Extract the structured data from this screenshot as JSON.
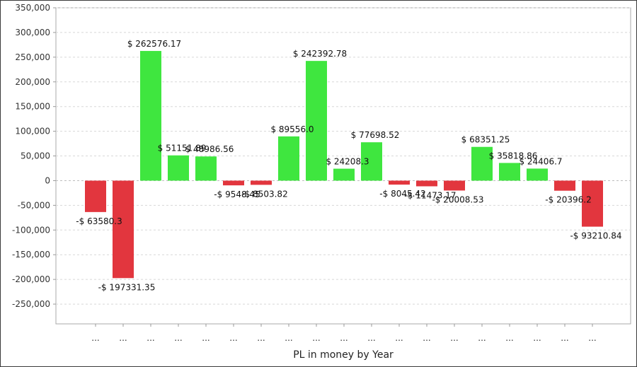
{
  "chart_data": {
    "type": "bar",
    "title": "",
    "xlabel": "PL in money by Year",
    "ylabel": "",
    "ylim": [
      -290000,
      350000
    ],
    "yticks": [
      350000,
      300000,
      250000,
      200000,
      150000,
      100000,
      50000,
      0,
      -50000,
      -100000,
      -150000,
      -200000,
      -250000
    ],
    "ytick_labels": [
      "350,000",
      "300,000",
      "250,000",
      "200,000",
      "150,000",
      "100,000",
      "50,000",
      "0",
      "-50,000",
      "-100,000",
      "-150,000",
      "-200,000",
      "-250,000"
    ],
    "grid": true,
    "categories": [
      "...",
      "...",
      "...",
      "...",
      "...",
      "...",
      "...",
      "...",
      "...",
      "...",
      "...",
      "...",
      "...",
      "...",
      "...",
      "...",
      "...",
      "...",
      "..."
    ],
    "values": [
      -63580.3,
      -197331.35,
      262576.17,
      51151.89,
      48986.56,
      -9548.45,
      -8503.82,
      89556.0,
      242392.78,
      24208.3,
      77698.52,
      -8045.42,
      -11473.17,
      -20008.53,
      68351.25,
      35818.86,
      24406.7,
      -20396.2,
      -93210.84
    ],
    "value_labels": [
      "-$ 63580.3",
      "-$ 197331.35",
      "$ 262576.17",
      "$ 51151.89",
      "$ 48986.56",
      "-$ 9548.45",
      "-$ 8503.82",
      "$ 89556.0",
      "$ 242392.78",
      "$ 24208.3",
      "$ 77698.52",
      "-$ 8045.42",
      "-$ 11473.17",
      "-$ 20008.53",
      "$ 68351.25",
      "$ 35818.86",
      "$ 24406.7",
      "-$ 20396.2",
      "-$ 93210.84"
    ],
    "colors": {
      "positive": "#3fe63f",
      "negative": "#e2363e",
      "grid": "#d8d8d8",
      "axis": "#999999"
    }
  }
}
